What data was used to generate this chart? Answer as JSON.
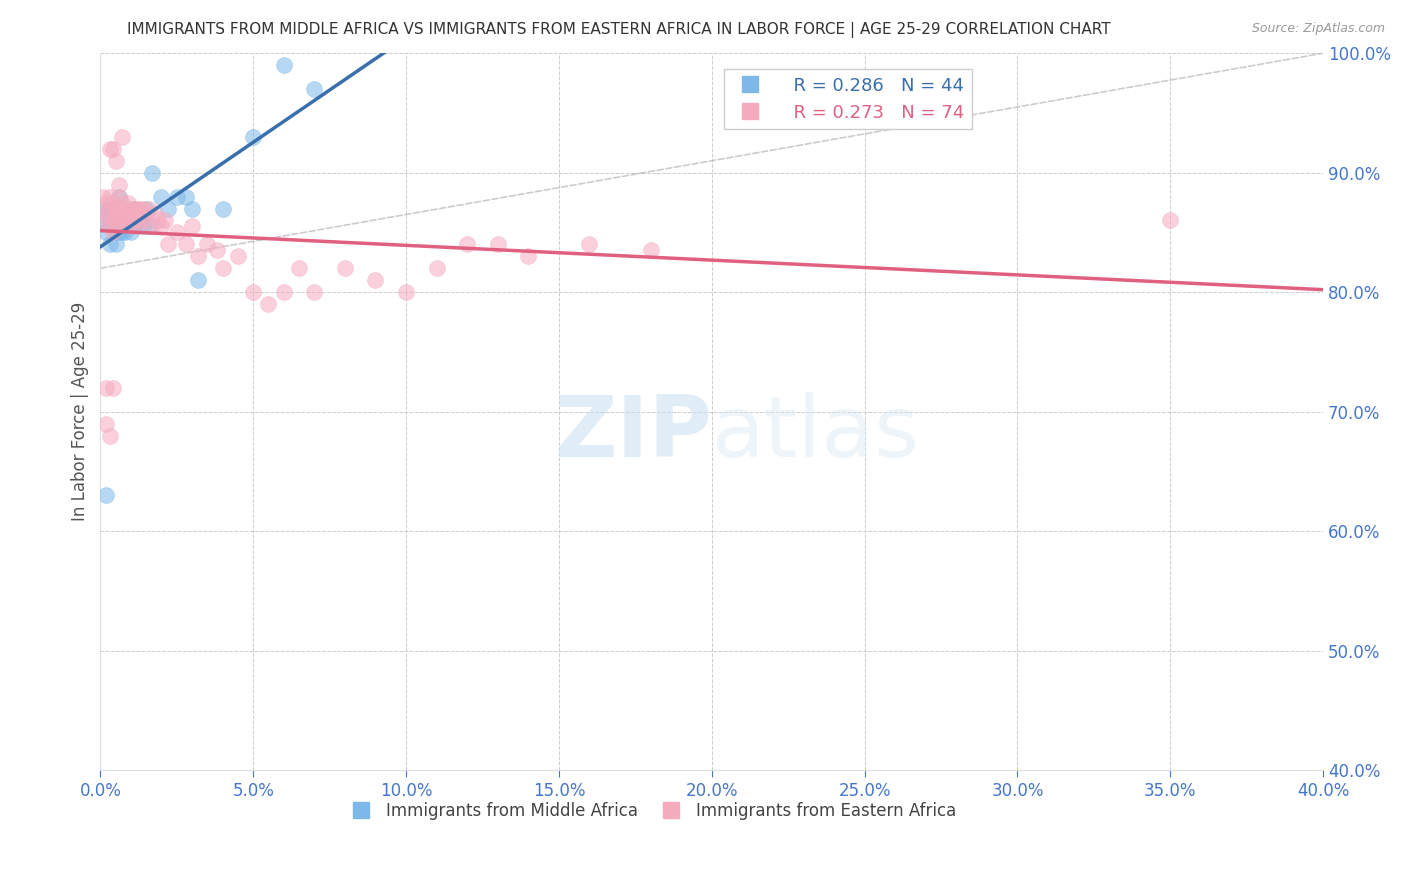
{
  "title": "IMMIGRANTS FROM MIDDLE AFRICA VS IMMIGRANTS FROM EASTERN AFRICA IN LABOR FORCE | AGE 25-29 CORRELATION CHART",
  "source": "Source: ZipAtlas.com",
  "ylabel": "In Labor Force | Age 25-29",
  "xlim": [
    0.0,
    0.4
  ],
  "ylim": [
    0.4,
    1.0
  ],
  "yticks": [
    0.4,
    0.5,
    0.6,
    0.7,
    0.8,
    0.9,
    1.0
  ],
  "xticks": [
    0.0,
    0.05,
    0.1,
    0.15,
    0.2,
    0.25,
    0.3,
    0.35,
    0.4
  ],
  "blue_R": 0.286,
  "blue_N": 44,
  "pink_R": 0.273,
  "pink_N": 74,
  "blue_color": "#7db8e8",
  "pink_color": "#f5abbe",
  "blue_line_color": "#3a6fad",
  "pink_line_color": "#e06080",
  "grid_color": "#cccccc",
  "title_color": "#333333",
  "axis_label_color": "#555555",
  "tick_color": "#4477cc",
  "watermark_zip": "ZIP",
  "watermark_atlas": "atlas",
  "blue_x": [
    0.001,
    0.002,
    0.002,
    0.003,
    0.003,
    0.003,
    0.004,
    0.004,
    0.005,
    0.005,
    0.005,
    0.006,
    0.006,
    0.006,
    0.006,
    0.007,
    0.007,
    0.007,
    0.008,
    0.008,
    0.008,
    0.009,
    0.009,
    0.01,
    0.01,
    0.011,
    0.011,
    0.012,
    0.013,
    0.014,
    0.015,
    0.016,
    0.017,
    0.02,
    0.022,
    0.025,
    0.028,
    0.03,
    0.032,
    0.04,
    0.05,
    0.06,
    0.07,
    0.002
  ],
  "blue_y": [
    0.86,
    0.87,
    0.85,
    0.87,
    0.86,
    0.84,
    0.87,
    0.855,
    0.865,
    0.85,
    0.84,
    0.88,
    0.86,
    0.85,
    0.87,
    0.86,
    0.85,
    0.87,
    0.855,
    0.86,
    0.85,
    0.865,
    0.855,
    0.86,
    0.85,
    0.87,
    0.855,
    0.865,
    0.86,
    0.855,
    0.87,
    0.855,
    0.9,
    0.88,
    0.87,
    0.88,
    0.88,
    0.87,
    0.81,
    0.87,
    0.93,
    0.99,
    0.97,
    0.63
  ],
  "pink_x": [
    0.001,
    0.001,
    0.002,
    0.002,
    0.003,
    0.003,
    0.003,
    0.004,
    0.004,
    0.004,
    0.005,
    0.005,
    0.005,
    0.006,
    0.006,
    0.006,
    0.007,
    0.007,
    0.007,
    0.008,
    0.008,
    0.008,
    0.009,
    0.009,
    0.01,
    0.01,
    0.011,
    0.011,
    0.012,
    0.012,
    0.013,
    0.013,
    0.014,
    0.014,
    0.015,
    0.016,
    0.017,
    0.018,
    0.019,
    0.02,
    0.021,
    0.022,
    0.025,
    0.028,
    0.03,
    0.032,
    0.035,
    0.038,
    0.04,
    0.045,
    0.05,
    0.055,
    0.06,
    0.065,
    0.07,
    0.08,
    0.09,
    0.1,
    0.11,
    0.12,
    0.13,
    0.14,
    0.16,
    0.18,
    0.003,
    0.004,
    0.005,
    0.006,
    0.007,
    0.35,
    0.002,
    0.002,
    0.003,
    0.004
  ],
  "pink_y": [
    0.88,
    0.86,
    0.875,
    0.865,
    0.88,
    0.87,
    0.855,
    0.875,
    0.86,
    0.85,
    0.87,
    0.865,
    0.855,
    0.88,
    0.87,
    0.86,
    0.87,
    0.86,
    0.875,
    0.865,
    0.87,
    0.86,
    0.875,
    0.865,
    0.87,
    0.855,
    0.87,
    0.86,
    0.87,
    0.855,
    0.865,
    0.87,
    0.86,
    0.87,
    0.865,
    0.87,
    0.855,
    0.865,
    0.86,
    0.855,
    0.86,
    0.84,
    0.85,
    0.84,
    0.855,
    0.83,
    0.84,
    0.835,
    0.82,
    0.83,
    0.8,
    0.79,
    0.8,
    0.82,
    0.8,
    0.82,
    0.81,
    0.8,
    0.82,
    0.84,
    0.84,
    0.83,
    0.84,
    0.835,
    0.92,
    0.92,
    0.91,
    0.89,
    0.93,
    0.86,
    0.69,
    0.72,
    0.68,
    0.72
  ]
}
